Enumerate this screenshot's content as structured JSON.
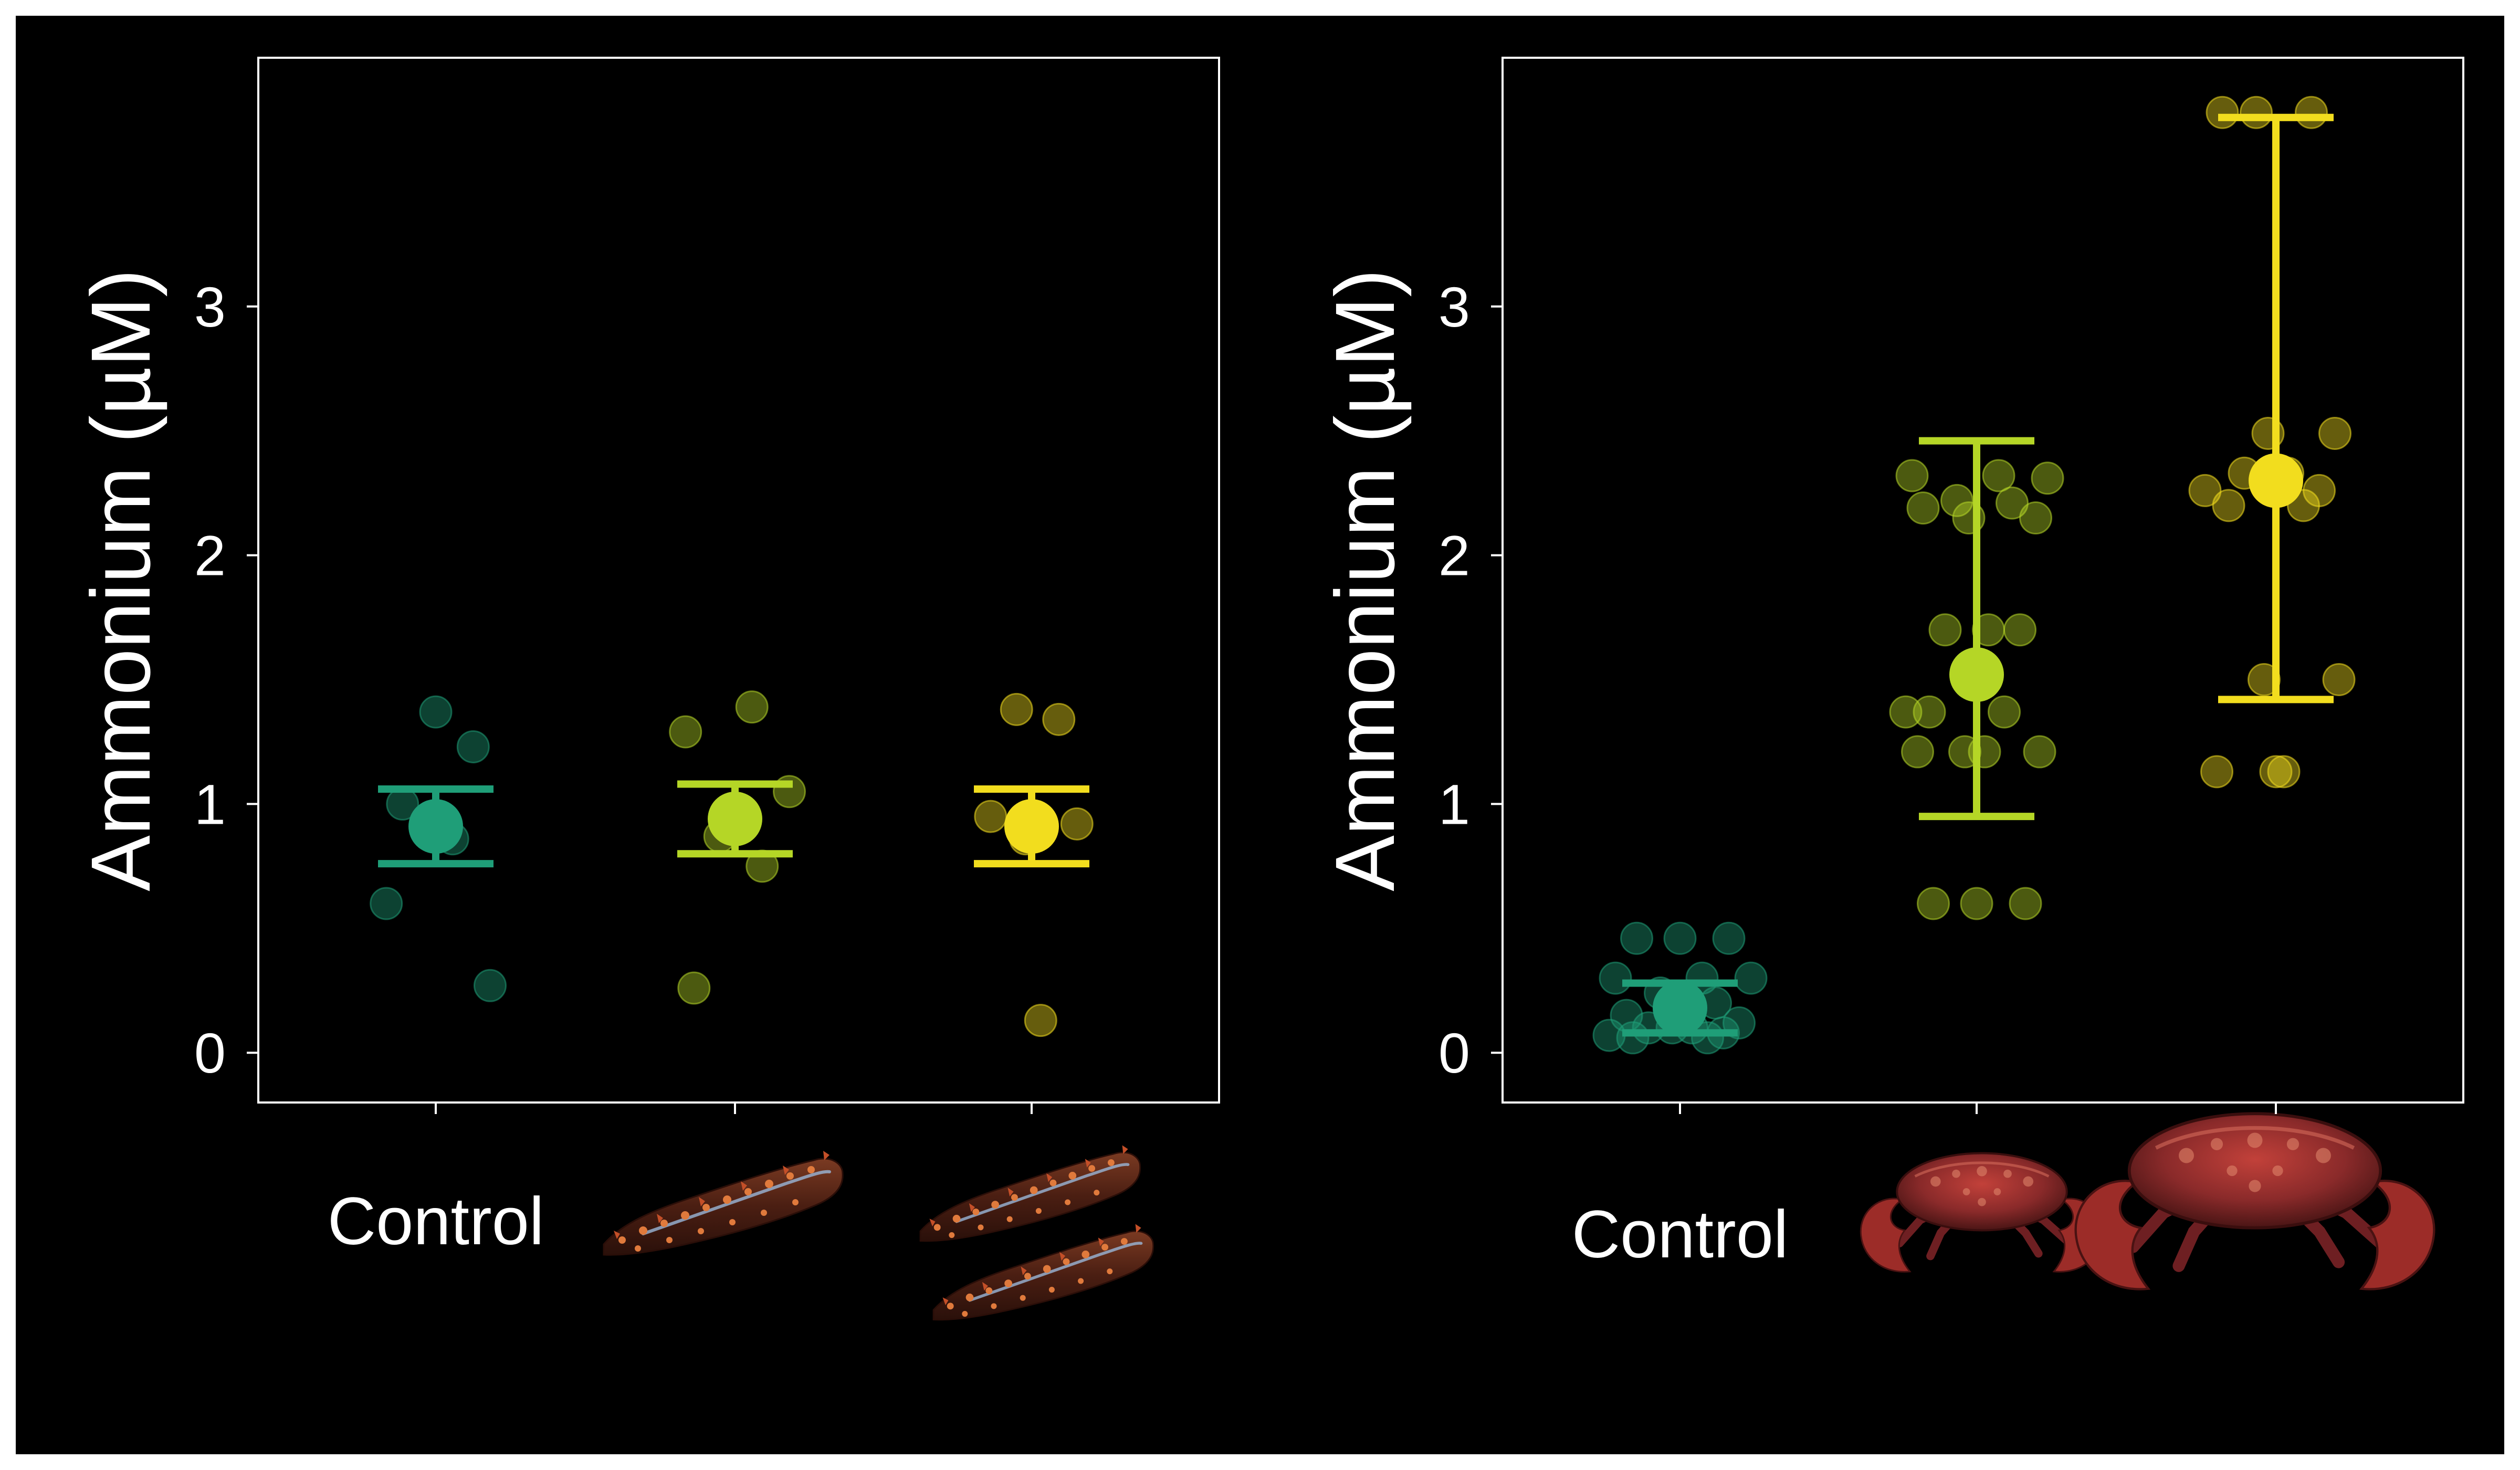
{
  "colors": {
    "background": "#000000",
    "axis": "#ffffff",
    "text": "#ffffff",
    "control": "#1f9e78",
    "low": "#b5d626",
    "high": "#f2dd1e"
  },
  "chart_data": [
    {
      "type": "scatter",
      "title": "",
      "xlabel": "",
      "ylabel": "Ammonium (µM)",
      "ylim": [
        -0.2,
        4.0
      ],
      "yticks": [
        "0",
        "1",
        "2",
        "3"
      ],
      "grid": false,
      "legend": "none",
      "categories": [
        "Control",
        "",
        ""
      ],
      "category_icons": [
        "",
        "sea-cucumber-icon",
        "two-sea-cucumbers-icon"
      ],
      "series": [
        {
          "color": "#1f9e78",
          "mean": 0.91,
          "error_low": 0.76,
          "error_high": 1.06,
          "points": [
            1.37,
            1.23,
            1.0,
            0.86,
            0.6,
            0.27
          ]
        },
        {
          "color": "#b5d626",
          "mean": 0.94,
          "error_low": 0.8,
          "error_high": 1.08,
          "points": [
            1.39,
            1.29,
            1.05,
            0.87,
            0.75,
            0.26
          ]
        },
        {
          "color": "#f2dd1e",
          "mean": 0.91,
          "error_low": 0.76,
          "error_high": 1.06,
          "points": [
            1.38,
            1.34,
            0.95,
            0.92,
            0.86,
            0.13
          ]
        }
      ]
    },
    {
      "type": "scatter",
      "title": "",
      "xlabel": "",
      "ylabel": "Ammonium (µM)",
      "ylim": [
        -0.2,
        4.0
      ],
      "yticks": [
        "0",
        "1",
        "2",
        "3"
      ],
      "grid": false,
      "legend": "none",
      "categories": [
        "Control",
        "",
        ""
      ],
      "category_icons": [
        "",
        "small-crab-icon",
        "large-crab-icon"
      ],
      "series": [
        {
          "color": "#1f9e78",
          "mean": 0.18,
          "error_low": 0.08,
          "error_high": 0.28,
          "points": [
            0.46,
            0.46,
            0.46,
            0.3,
            0.3,
            0.3,
            0.24,
            0.2,
            0.15,
            0.12,
            0.1,
            0.1,
            0.1,
            0.08,
            0.07,
            0.06,
            0.06
          ]
        },
        {
          "color": "#b5d626",
          "mean": 1.52,
          "error_low": 0.95,
          "error_high": 2.46,
          "points": [
            2.32,
            2.32,
            2.31,
            2.22,
            2.21,
            2.19,
            2.15,
            2.15,
            1.7,
            1.7,
            1.7,
            1.37,
            1.37,
            1.37,
            1.21,
            1.21,
            1.21,
            1.21,
            0.6,
            0.6,
            0.6
          ]
        },
        {
          "color": "#f2dd1e",
          "mean": 2.3,
          "error_low": 1.42,
          "error_high": 3.76,
          "points": [
            3.78,
            3.78,
            3.78,
            2.49,
            2.49,
            2.33,
            2.33,
            2.26,
            2.26,
            2.2,
            2.2,
            1.5,
            1.5,
            1.13,
            1.13,
            1.13
          ]
        }
      ]
    }
  ]
}
